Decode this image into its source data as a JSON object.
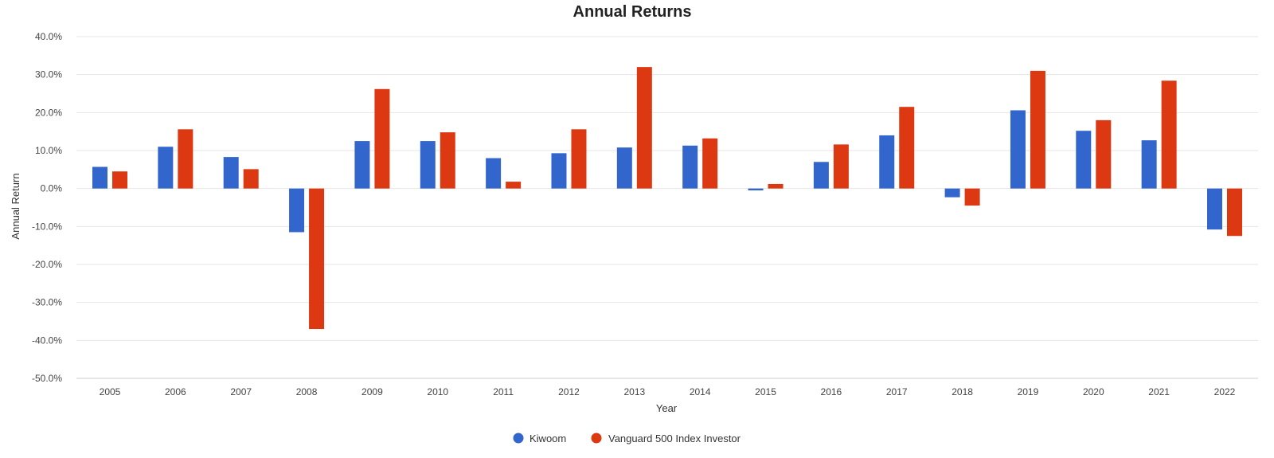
{
  "chart_data": {
    "type": "bar",
    "title": "Annual Returns",
    "xlabel": "Year",
    "ylabel": "Annual Return",
    "ylim": [
      -50,
      40
    ],
    "yticks": [
      40,
      30,
      20,
      10,
      0,
      -10,
      -20,
      -30,
      -40,
      -50
    ],
    "ytick_labels": [
      "40.0%",
      "30.0%",
      "20.0%",
      "10.0%",
      "0.0%",
      "-10.0%",
      "-20.0%",
      "-30.0%",
      "-40.0%",
      "-50.0%"
    ],
    "categories": [
      "2005",
      "2006",
      "2007",
      "2008",
      "2009",
      "2010",
      "2011",
      "2012",
      "2013",
      "2014",
      "2015",
      "2016",
      "2017",
      "2018",
      "2019",
      "2020",
      "2021",
      "2022"
    ],
    "series": [
      {
        "name": "Kiwoom",
        "color": "#3366cc",
        "values": [
          5.7,
          11.0,
          8.3,
          -11.5,
          12.5,
          12.5,
          8.0,
          9.3,
          10.8,
          11.3,
          -0.5,
          7.0,
          14.0,
          -2.3,
          20.6,
          15.2,
          12.7,
          -10.8
        ]
      },
      {
        "name": "Vanguard 500 Index Investor",
        "color": "#dc3912",
        "values": [
          4.5,
          15.6,
          5.1,
          -37.0,
          26.2,
          14.8,
          1.8,
          15.6,
          32.0,
          13.2,
          1.2,
          11.6,
          21.5,
          -4.5,
          31.0,
          18.0,
          28.4,
          -12.5
        ]
      }
    ],
    "grid": true,
    "legend_position": "bottom"
  }
}
